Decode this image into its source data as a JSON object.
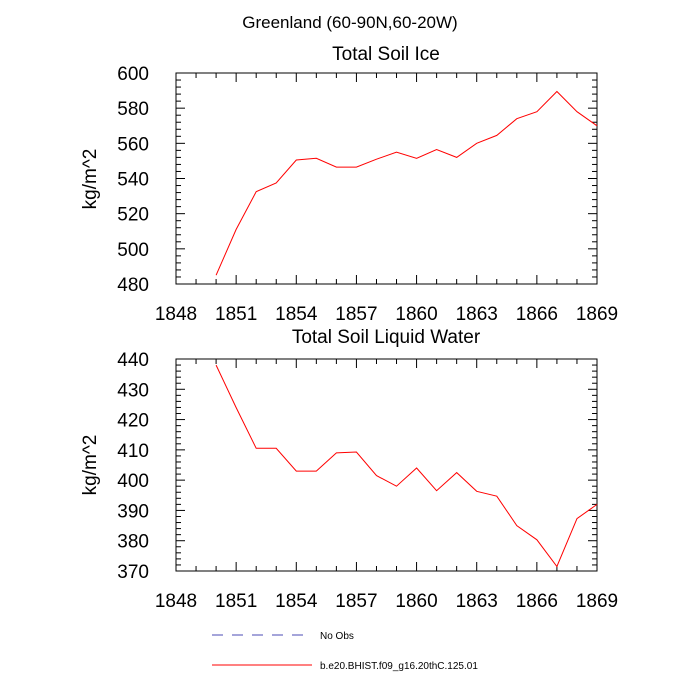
{
  "figure_title": "Greenland (60-90N,60-20W)",
  "chart_data": [
    {
      "type": "line",
      "title": "Total Soil Ice",
      "xlabel": "",
      "ylabel": "kg/m^2",
      "xlim": [
        1848,
        1869
      ],
      "ylim": [
        480,
        600
      ],
      "xticks": [
        1848,
        1851,
        1854,
        1857,
        1860,
        1863,
        1866,
        1869
      ],
      "yticks": [
        480,
        500,
        520,
        540,
        560,
        580,
        600
      ],
      "grid": false,
      "series": [
        {
          "name": "b.e20.BHIST.f09_g16.20thC.125.01",
          "color": "#ff0000",
          "x": [
            1850,
            1851,
            1852,
            1853,
            1854,
            1855,
            1856,
            1857,
            1858,
            1859,
            1860,
            1861,
            1862,
            1863,
            1864,
            1865,
            1866,
            1867,
            1868,
            1869
          ],
          "y": [
            485,
            511,
            532.5,
            537.5,
            550.5,
            551.5,
            546.5,
            546.5,
            551,
            555,
            551.5,
            556.5,
            552,
            560,
            564.5,
            574,
            578,
            589.5,
            578,
            570
          ]
        }
      ]
    },
    {
      "type": "line",
      "title": "Total Soil Liquid Water",
      "xlabel": "",
      "ylabel": "kg/m^2",
      "xlim": [
        1848,
        1869
      ],
      "ylim": [
        370,
        440
      ],
      "xticks": [
        1848,
        1851,
        1854,
        1857,
        1860,
        1863,
        1866,
        1869
      ],
      "yticks": [
        370,
        380,
        390,
        400,
        410,
        420,
        430,
        440
      ],
      "grid": false,
      "series": [
        {
          "name": "b.e20.BHIST.f09_g16.20thC.125.01",
          "color": "#ff0000",
          "x": [
            1850,
            1851,
            1852,
            1853,
            1854,
            1855,
            1856,
            1857,
            1858,
            1859,
            1860,
            1861,
            1862,
            1863,
            1864,
            1865,
            1866,
            1867,
            1868,
            1869
          ],
          "y": [
            438,
            424,
            410.5,
            410.5,
            403,
            403,
            409,
            409.3,
            401.5,
            398,
            404,
            396.5,
            402.5,
            396.3,
            394.7,
            385,
            380.3,
            371.5,
            387.3,
            392
          ]
        }
      ]
    }
  ],
  "legend": {
    "placement": "bottom-center",
    "items": [
      {
        "label": "No Obs",
        "color": "#4b4bb4",
        "style": "dashed"
      },
      {
        "label": "b.e20.BHIST.f09_g16.20thC.125.01",
        "color": "#ff0000",
        "style": "solid"
      }
    ]
  }
}
